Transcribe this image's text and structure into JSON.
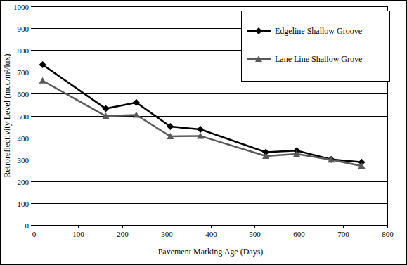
{
  "chart_data": {
    "type": "line",
    "x_label": "Pavement Marking Age (Days)",
    "y_label": "Retroreflectivity Level (mcd/m²/lux)",
    "x": [
      20,
      163,
      232,
      309,
      377,
      525,
      595,
      673,
      742
    ],
    "series": [
      {
        "name": "Edgeline Shallow Groove",
        "color": "#000000",
        "marker": "diamond",
        "line_style": "solid",
        "values": [
          733,
          532,
          560,
          450,
          437,
          333,
          340,
          300,
          287
        ]
      },
      {
        "name": "Lane Line Shallow Grove",
        "color": "#595959",
        "marker": "triangle",
        "line_style": "solid",
        "values": [
          660,
          498,
          503,
          405,
          407,
          315,
          325,
          298,
          270
        ]
      }
    ],
    "xlim": [
      0,
      800
    ],
    "xticks": [
      0,
      100,
      200,
      300,
      400,
      500,
      600,
      700,
      800
    ],
    "ylim": [
      0,
      1000
    ],
    "yticks": [
      0,
      100,
      200,
      300,
      400,
      500,
      600,
      700,
      800,
      900,
      1000
    ],
    "grid": true,
    "legend": "upper-right"
  }
}
